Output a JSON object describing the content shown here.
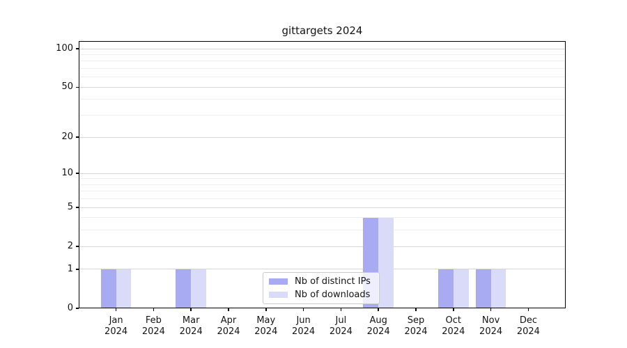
{
  "figure": {
    "background": "#ffffff"
  },
  "chart_data": {
    "type": "bar",
    "title": "gittargets 2024",
    "categories": [
      "Jan 2024",
      "Feb 2024",
      "Mar 2024",
      "Apr 2024",
      "May 2024",
      "Jun 2024",
      "Jul 2024",
      "Aug 2024",
      "Sep 2024",
      "Oct 2024",
      "Nov 2024",
      "Dec 2024"
    ],
    "series": [
      {
        "name": "Nb of distinct IPs",
        "color": "#a8aaf2",
        "values": [
          1,
          0,
          1,
          0,
          0,
          0,
          0,
          4,
          0,
          1,
          1,
          0
        ]
      },
      {
        "name": "Nb of downloads",
        "color": "#d9dbf8",
        "values": [
          1,
          0,
          1,
          0,
          0,
          0,
          0,
          4,
          0,
          1,
          1,
          0
        ]
      }
    ],
    "xlabel": "",
    "ylabel": "",
    "yscale": "log1p",
    "ylim": [
      0,
      115
    ],
    "yticks": [
      0,
      1,
      2,
      5,
      10,
      20,
      50,
      100
    ],
    "minor_yticks": [
      3,
      4,
      6,
      7,
      8,
      9,
      30,
      40,
      60,
      70,
      80,
      90
    ],
    "grid": true,
    "legend_position": "lower center",
    "colors": {
      "major_grid": "#d6d6d6",
      "minor_grid": "#eeeeee",
      "spine": "#000000",
      "legend_border": "#cbcbcb",
      "legend_background": "rgba(255,255,255,0.8)"
    }
  }
}
